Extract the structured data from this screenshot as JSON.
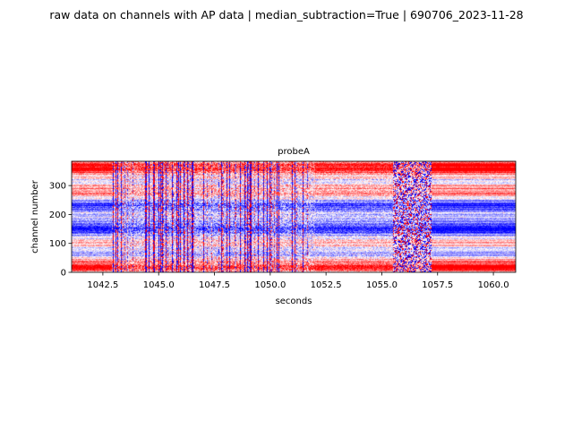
{
  "figure": {
    "suptitle": "raw data on channels with AP data | median_subtraction=True | 690706_2023-11-28"
  },
  "chart_data": {
    "type": "heatmap",
    "title": "probeA",
    "xlabel": "seconds",
    "ylabel": "channel number",
    "xlim": [
      1041.1,
      1061.0
    ],
    "ylim": [
      0,
      384
    ],
    "x_ticks": [
      1042.5,
      1045.0,
      1047.5,
      1050.0,
      1052.5,
      1055.0,
      1057.5,
      1060.0
    ],
    "x_tick_labels": [
      "1042.5",
      "1045.0",
      "1047.5",
      "1050.0",
      "1052.5",
      "1055.0",
      "1057.5",
      "1060.0"
    ],
    "y_ticks": [
      0,
      100,
      200,
      300
    ],
    "y_tick_labels": [
      "0",
      "100",
      "200",
      "300"
    ],
    "colormap": "bwr",
    "colors": {
      "low": "#0000ff",
      "mid": "#ffffff",
      "high": "#ff0000"
    },
    "regions": [
      {
        "x_range": [
          1041.1,
          1042.9
        ],
        "pattern": "smooth channel bands"
      },
      {
        "x_range": [
          1042.9,
          1052.0
        ],
        "pattern": "dense vertical spike columns"
      },
      {
        "x_range": [
          1052.0,
          1055.5
        ],
        "pattern": "banded, fading"
      },
      {
        "x_range": [
          1055.5,
          1057.2
        ],
        "pattern": "noisy speckle"
      },
      {
        "x_range": [
          1057.2,
          1061.0
        ],
        "pattern": "smooth channel bands"
      }
    ]
  }
}
